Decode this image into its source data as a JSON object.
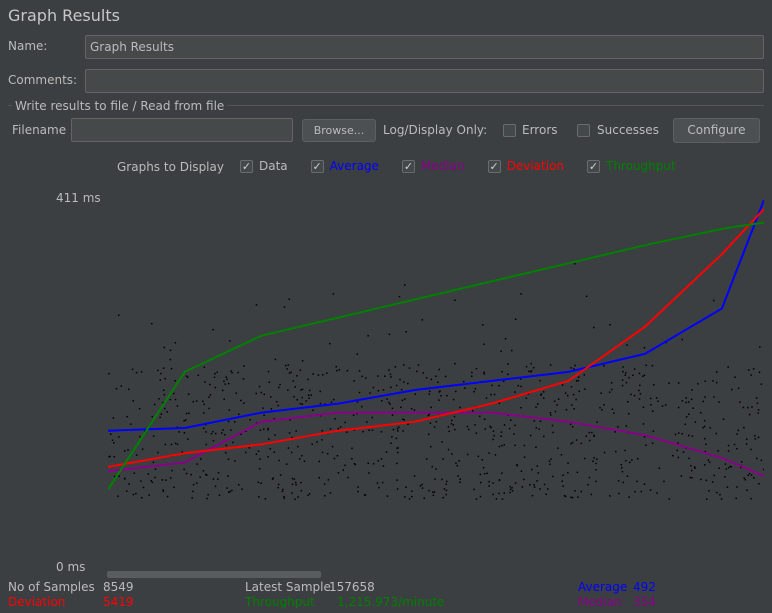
{
  "window": {
    "title": "Graph Results"
  },
  "form": {
    "name_label": "Name:",
    "name_value": "Graph Results",
    "comments_label": "Comments:",
    "comments_value": ""
  },
  "file_section": {
    "legend": "Write results to file / Read from file",
    "filename_label": "Filename",
    "filename_value": "",
    "browse_label": "Browse...",
    "log_display_label": "Log/Display Only:",
    "errors_label": "Errors",
    "successes_label": "Successes",
    "configure_label": "Configure"
  },
  "graphs": {
    "label": "Graphs to Display",
    "options": [
      {
        "label": "Data",
        "color": "#000000",
        "checked": true
      },
      {
        "label": "Average",
        "color": "#0000ff",
        "checked": true
      },
      {
        "label": "Median",
        "color": "#8b008b",
        "checked": true
      },
      {
        "label": "Deviation",
        "color": "#ff0000",
        "checked": true
      },
      {
        "label": "Throughput",
        "color": "#008000",
        "checked": true
      }
    ]
  },
  "chart_data": {
    "type": "line",
    "y_top_label": "411  ms",
    "y_bottom_label": "0  ms",
    "ylim": [
      0,
      411
    ],
    "x": [
      0,
      1000,
      2000,
      3000,
      4000,
      5000,
      6000,
      7000,
      8000,
      8549
    ],
    "series": [
      {
        "name": "Average",
        "color": "#0000ff",
        "values": [
          155,
          158,
          175,
          185,
          200,
          210,
          220,
          240,
          290,
          410
        ]
      },
      {
        "name": "Median",
        "color": "#8b008b",
        "values": [
          110,
          120,
          165,
          175,
          175,
          175,
          165,
          150,
          125,
          105
        ]
      },
      {
        "name": "Deviation",
        "color": "#ff0000",
        "values": [
          115,
          130,
          140,
          155,
          165,
          185,
          210,
          270,
          350,
          400
        ]
      },
      {
        "name": "Throughput",
        "color": "#008000",
        "values": [
          90,
          220,
          260,
          280,
          300,
          320,
          340,
          360,
          378,
          385
        ]
      }
    ]
  },
  "stats": {
    "samples_label": "No of Samples",
    "samples_value": "8549",
    "latest_label": "Latest Sample",
    "latest_value": "157658",
    "average_label": "Average",
    "average_value": "492",
    "deviation_label": "Deviation",
    "deviation_value": "5419",
    "throughput_label": "Throughput",
    "throughput_value": "1,215.973/minute",
    "median_label": "Median",
    "median_value": "354"
  }
}
